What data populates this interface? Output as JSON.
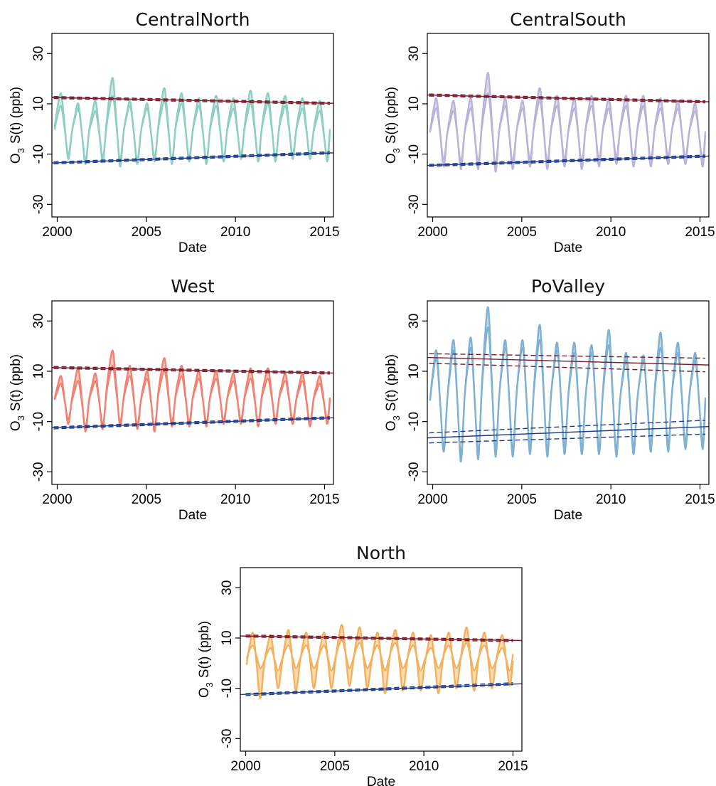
{
  "chart_data": [
    {
      "type": "line",
      "title": "CentralNorth",
      "xlabel": "Date",
      "ylabel_main": "O",
      "ylabel_sub": "3",
      "ylabel_rest": "S(t)  (ppb)",
      "xlim": [
        1999.7,
        2015.5
      ],
      "ylim": [
        -35,
        38
      ],
      "xticks": [
        "2000",
        "2005",
        "2010",
        "2015"
      ],
      "yticks": [
        "-30",
        "-10",
        "10",
        "30"
      ],
      "color": "#8ecfc2",
      "fill_color": "#cfeae4",
      "series": {
        "date_range": [
          "1999.8",
          "2015.3"
        ],
        "upper_peaks": [
          14,
          10,
          11,
          20,
          11,
          10,
          16,
          14,
          12,
          13,
          12,
          15,
          14,
          13,
          12,
          11
        ],
        "inner_peaks": [
          9,
          8,
          7,
          13,
          9,
          8,
          11,
          10,
          9,
          9,
          8,
          10,
          10,
          9,
          8,
          7
        ],
        "lower_troughs": [
          -12,
          -14,
          -13,
          -15,
          -14,
          -13,
          -14,
          -13,
          -14,
          -13,
          -12,
          -13,
          -13,
          -12,
          -12,
          -13
        ],
        "inner_troughs": [
          -10,
          -12,
          -11,
          -12,
          -12,
          -11,
          -12,
          -11,
          -12,
          -11,
          -10,
          -11,
          -11,
          -10,
          -10,
          -11
        ]
      },
      "trend_upper": {
        "color": "#7a1c2c",
        "start": 12.5,
        "end": 10.2,
        "ci_start": [
          12.1,
          12.9
        ],
        "ci_end": [
          9.8,
          10.6
        ]
      },
      "trend_lower": {
        "color": "#1e3a8a",
        "start": -13.5,
        "end": -9.5,
        "ci_start": [
          -13.9,
          -13.1
        ],
        "ci_end": [
          -9.9,
          -9.1
        ]
      }
    },
    {
      "type": "line",
      "title": "CentralSouth",
      "xlabel": "Date",
      "ylabel_main": "O",
      "ylabel_sub": "3",
      "ylabel_rest": "S(t)  (ppb)",
      "xlim": [
        1999.7,
        2015.5
      ],
      "ylim": [
        -35,
        38
      ],
      "xticks": [
        "2000",
        "2005",
        "2010",
        "2015"
      ],
      "yticks": [
        "-30",
        "-10",
        "10",
        "30"
      ],
      "color": "#b9b3d9",
      "fill_color": "#dedbee",
      "series": {
        "date_range": [
          "1999.8",
          "2015.3"
        ],
        "upper_peaks": [
          12,
          11,
          12,
          22,
          12,
          11,
          16,
          13,
          12,
          13,
          12,
          13,
          13,
          12,
          11,
          10
        ],
        "inner_peaks": [
          8,
          7,
          8,
          14,
          9,
          8,
          11,
          9,
          8,
          9,
          8,
          9,
          9,
          8,
          8,
          7
        ],
        "lower_troughs": [
          -15,
          -16,
          -16,
          -17,
          -16,
          -15,
          -16,
          -15,
          -16,
          -15,
          -14,
          -15,
          -15,
          -14,
          -14,
          -15
        ],
        "inner_troughs": [
          -12,
          -13,
          -13,
          -14,
          -13,
          -12,
          -13,
          -12,
          -13,
          -12,
          -11,
          -12,
          -12,
          -11,
          -11,
          -12
        ]
      },
      "trend_upper": {
        "color": "#7a1c2c",
        "start": 13.5,
        "end": 10.8,
        "ci_start": [
          13.1,
          13.9
        ],
        "ci_end": [
          10.4,
          11.2
        ]
      },
      "trend_lower": {
        "color": "#1e3a8a",
        "start": -14.5,
        "end": -10.8,
        "ci_start": [
          -14.9,
          -14.1
        ],
        "ci_end": [
          -11.2,
          -10.4
        ]
      }
    },
    {
      "type": "line",
      "title": "West",
      "xlabel": "Date",
      "ylabel_main": "O",
      "ylabel_sub": "3",
      "ylabel_rest": "S(t)  (ppb)",
      "xlim": [
        1999.7,
        2015.5
      ],
      "ylim": [
        -35,
        38
      ],
      "xticks": [
        "2000",
        "2005",
        "2010",
        "2015"
      ],
      "yticks": [
        "-30",
        "-10",
        "10",
        "30"
      ],
      "color": "#f08272",
      "fill_color": "#f8c4bb",
      "series": {
        "date_range": [
          "1999.8",
          "2015.3"
        ],
        "upper_peaks": [
          8,
          11,
          9,
          18,
          12,
          10,
          15,
          12,
          10,
          10,
          9,
          11,
          11,
          9,
          9,
          8
        ],
        "inner_peaks": [
          5,
          6,
          6,
          12,
          8,
          7,
          10,
          8,
          7,
          7,
          6,
          7,
          7,
          6,
          6,
          5
        ],
        "lower_troughs": [
          -11,
          -14,
          -13,
          -12,
          -13,
          -14,
          -12,
          -12,
          -12,
          -11,
          -11,
          -12,
          -11,
          -11,
          -12,
          -11
        ],
        "inner_troughs": [
          -9,
          -12,
          -11,
          -10,
          -11,
          -12,
          -10,
          -10,
          -10,
          -9,
          -9,
          -10,
          -9,
          -9,
          -10,
          -9
        ]
      },
      "trend_upper": {
        "color": "#7a1c2c",
        "start": 11.5,
        "end": 9.3,
        "ci_start": [
          11.1,
          11.9
        ],
        "ci_end": [
          8.9,
          9.7
        ]
      },
      "trend_lower": {
        "color": "#1e3a8a",
        "start": -12.5,
        "end": -8.5,
        "ci_start": [
          -12.9,
          -12.1
        ],
        "ci_end": [
          -8.9,
          -8.1
        ]
      }
    },
    {
      "type": "line",
      "title": "PoValley",
      "xlabel": "Date",
      "ylabel_main": "O",
      "ylabel_sub": "3",
      "ylabel_rest": "S(t)  (ppb)",
      "xlim": [
        1999.7,
        2015.5
      ],
      "ylim": [
        -35,
        38
      ],
      "xticks": [
        "2000",
        "2005",
        "2010",
        "2015"
      ],
      "yticks": [
        "-30",
        "-10",
        "10",
        "30"
      ],
      "color": "#7fb1d3",
      "fill_color": "#c4dcec",
      "series": {
        "date_range": [
          "1999.8",
          "2015.3"
        ],
        "upper_peaks": [
          18,
          22,
          23,
          35,
          22,
          22,
          28,
          21,
          21,
          20,
          26,
          17,
          16,
          25,
          21,
          17
        ],
        "inner_peaks": [
          15,
          18,
          19,
          27,
          19,
          19,
          22,
          18,
          17,
          17,
          20,
          14,
          14,
          19,
          17,
          14
        ],
        "lower_troughs": [
          -22,
          -26,
          -25,
          -24,
          -24,
          -23,
          -24,
          -23,
          -23,
          -23,
          -24,
          -23,
          -22,
          -22,
          -21,
          -21
        ],
        "inner_troughs": [
          -20,
          -23,
          -22,
          -21,
          -21,
          -20,
          -21,
          -20,
          -20,
          -20,
          -21,
          -20,
          -19,
          -19,
          -18,
          -18
        ]
      },
      "trend_upper": {
        "color": "#7a1c2c",
        "start": 15.5,
        "end": 12.5,
        "ci_start": [
          13.2,
          17.0
        ],
        "ci_end": [
          9.8,
          15.2
        ]
      },
      "trend_lower": {
        "color": "#1e3a8a",
        "start": -16.5,
        "end": -12.0,
        "ci_start": [
          -18.5,
          -14.5
        ],
        "ci_end": [
          -15.0,
          -9.5
        ]
      }
    },
    {
      "type": "line",
      "title": "North",
      "xlabel": "Date",
      "ylabel_main": "O",
      "ylabel_sub": "3",
      "ylabel_rest": "S(t)  (ppb)",
      "xlim": [
        1999.7,
        2015.5
      ],
      "ylim": [
        -35,
        38
      ],
      "xticks": [
        "2000",
        "2005",
        "2010",
        "2015"
      ],
      "yticks": [
        "-30",
        "-10",
        "10",
        "30"
      ],
      "color": "#f5b05e",
      "fill_color": "#fbdcb0",
      "series": {
        "date_range": [
          "2000.0",
          "2015.0"
        ],
        "upper_peaks": [
          12,
          11,
          13,
          12,
          12,
          15,
          14,
          12,
          13,
          12,
          11,
          12,
          14,
          12,
          11
        ],
        "inner_peaks": [
          7,
          6,
          7,
          7,
          7,
          9,
          8,
          7,
          8,
          7,
          6,
          7,
          8,
          7,
          6
        ],
        "lower_troughs": [
          -14,
          -10,
          -11,
          -10,
          -10,
          -9,
          -10,
          -12,
          -11,
          -11,
          -12,
          -10,
          -11,
          -10,
          -9
        ],
        "inner_troughs": [
          -2,
          -3,
          -2,
          -2,
          -3,
          -2,
          -2,
          -3,
          -2,
          -3,
          -2,
          -2,
          -3,
          -2,
          -3
        ]
      },
      "trend_upper": {
        "color": "#7a1c2c",
        "start": 10.8,
        "end": 9.0,
        "ci_start": [
          10.4,
          11.2
        ],
        "ci_end": [
          8.6,
          9.4
        ]
      },
      "trend_lower": {
        "color": "#1e3a8a",
        "start": -12.5,
        "end": -8.2,
        "ci_start": [
          -12.9,
          -12.1
        ],
        "ci_end": [
          -8.6,
          -7.8
        ]
      }
    }
  ]
}
